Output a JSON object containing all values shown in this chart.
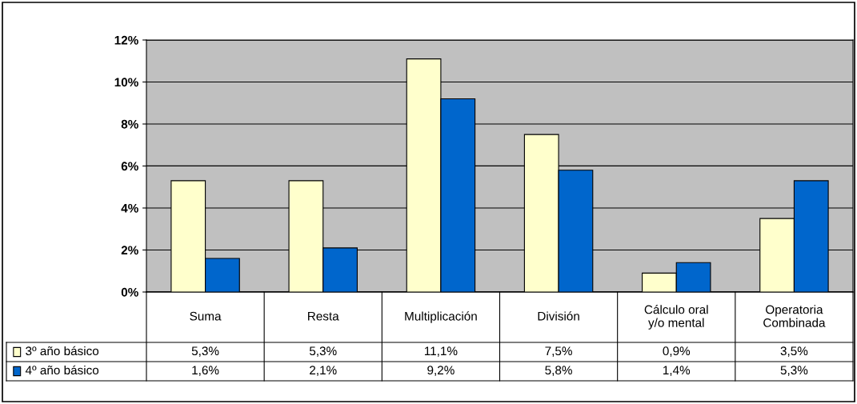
{
  "chart_data": {
    "type": "bar",
    "categories": [
      "Suma",
      "Resta",
      "Multiplicación",
      "División",
      "Cálculo oral\ny/o mental",
      "Operatoria\nCombinada"
    ],
    "series": [
      {
        "name": "3º año básico",
        "color": "#ffffcc",
        "values": [
          5.3,
          5.3,
          11.1,
          7.5,
          0.9,
          3.5
        ],
        "value_labels": [
          "5,3%",
          "5,3%",
          "11,1%",
          "7,5%",
          "0,9%",
          "3,5%"
        ]
      },
      {
        "name": "4º año básico",
        "color": "#0066cc",
        "values": [
          1.6,
          2.1,
          9.2,
          5.8,
          1.4,
          5.3
        ],
        "value_labels": [
          "1,6%",
          "2,1%",
          "9,2%",
          "5,8%",
          "1,4%",
          "5,3%"
        ]
      }
    ],
    "ylim": [
      0,
      12
    ],
    "yticks": [
      {
        "value": 0,
        "label": "0%"
      },
      {
        "value": 2,
        "label": "2%"
      },
      {
        "value": 4,
        "label": "4%"
      },
      {
        "value": 6,
        "label": "6%"
      },
      {
        "value": 8,
        "label": "8%"
      },
      {
        "value": 10,
        "label": "10%"
      },
      {
        "value": 12,
        "label": "12%"
      }
    ],
    "grid": "y",
    "legend": "bottom left"
  }
}
